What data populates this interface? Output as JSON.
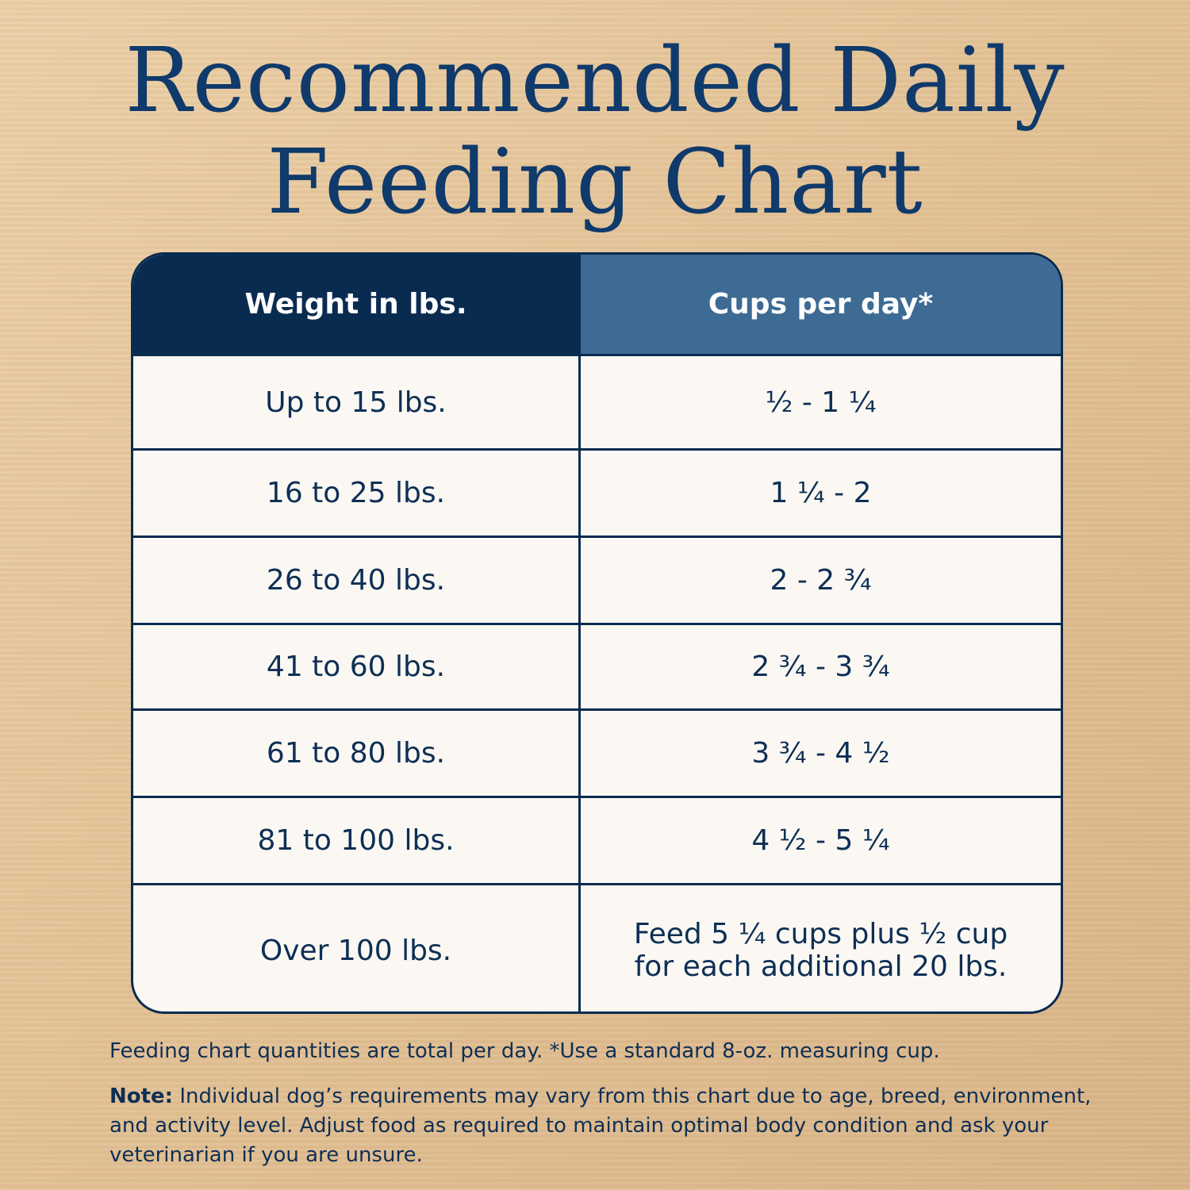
{
  "header": {
    "title_lines": [
      "Recommended Daily",
      "Feeding Chart"
    ]
  },
  "table": {
    "columns": [
      "Weight in lbs.",
      "Cups per day*"
    ],
    "rows": [
      [
        "Up to 15 lbs.",
        "½ - 1 ¼"
      ],
      [
        "16 to 25 lbs.",
        "1 ¼ - 2"
      ],
      [
        "26 to 40 lbs.",
        "2 - 2 ¾"
      ],
      [
        "41 to 60 lbs.",
        "2 ¾ - 3 ¾"
      ],
      [
        "61 to 80 lbs.",
        "3 ¾ - 4 ½"
      ],
      [
        "81 to 100 lbs.",
        "4 ½ - 5 ¼"
      ],
      [
        "Over 100 lbs.",
        "Feed 5 ¼ cups plus ½ cup for each additional 20 lbs."
      ]
    ]
  },
  "footnote": "Feeding chart quantities are total per day. *Use a standard 8-oz. measuring cup.",
  "note": {
    "label": "Note:",
    "text": "Individual dog’s requirements may vary from this chart due to age, breed, environment, and activity level. Adjust food as required to maintain optimal body condition and ask your veterinarian if you are unsure."
  }
}
